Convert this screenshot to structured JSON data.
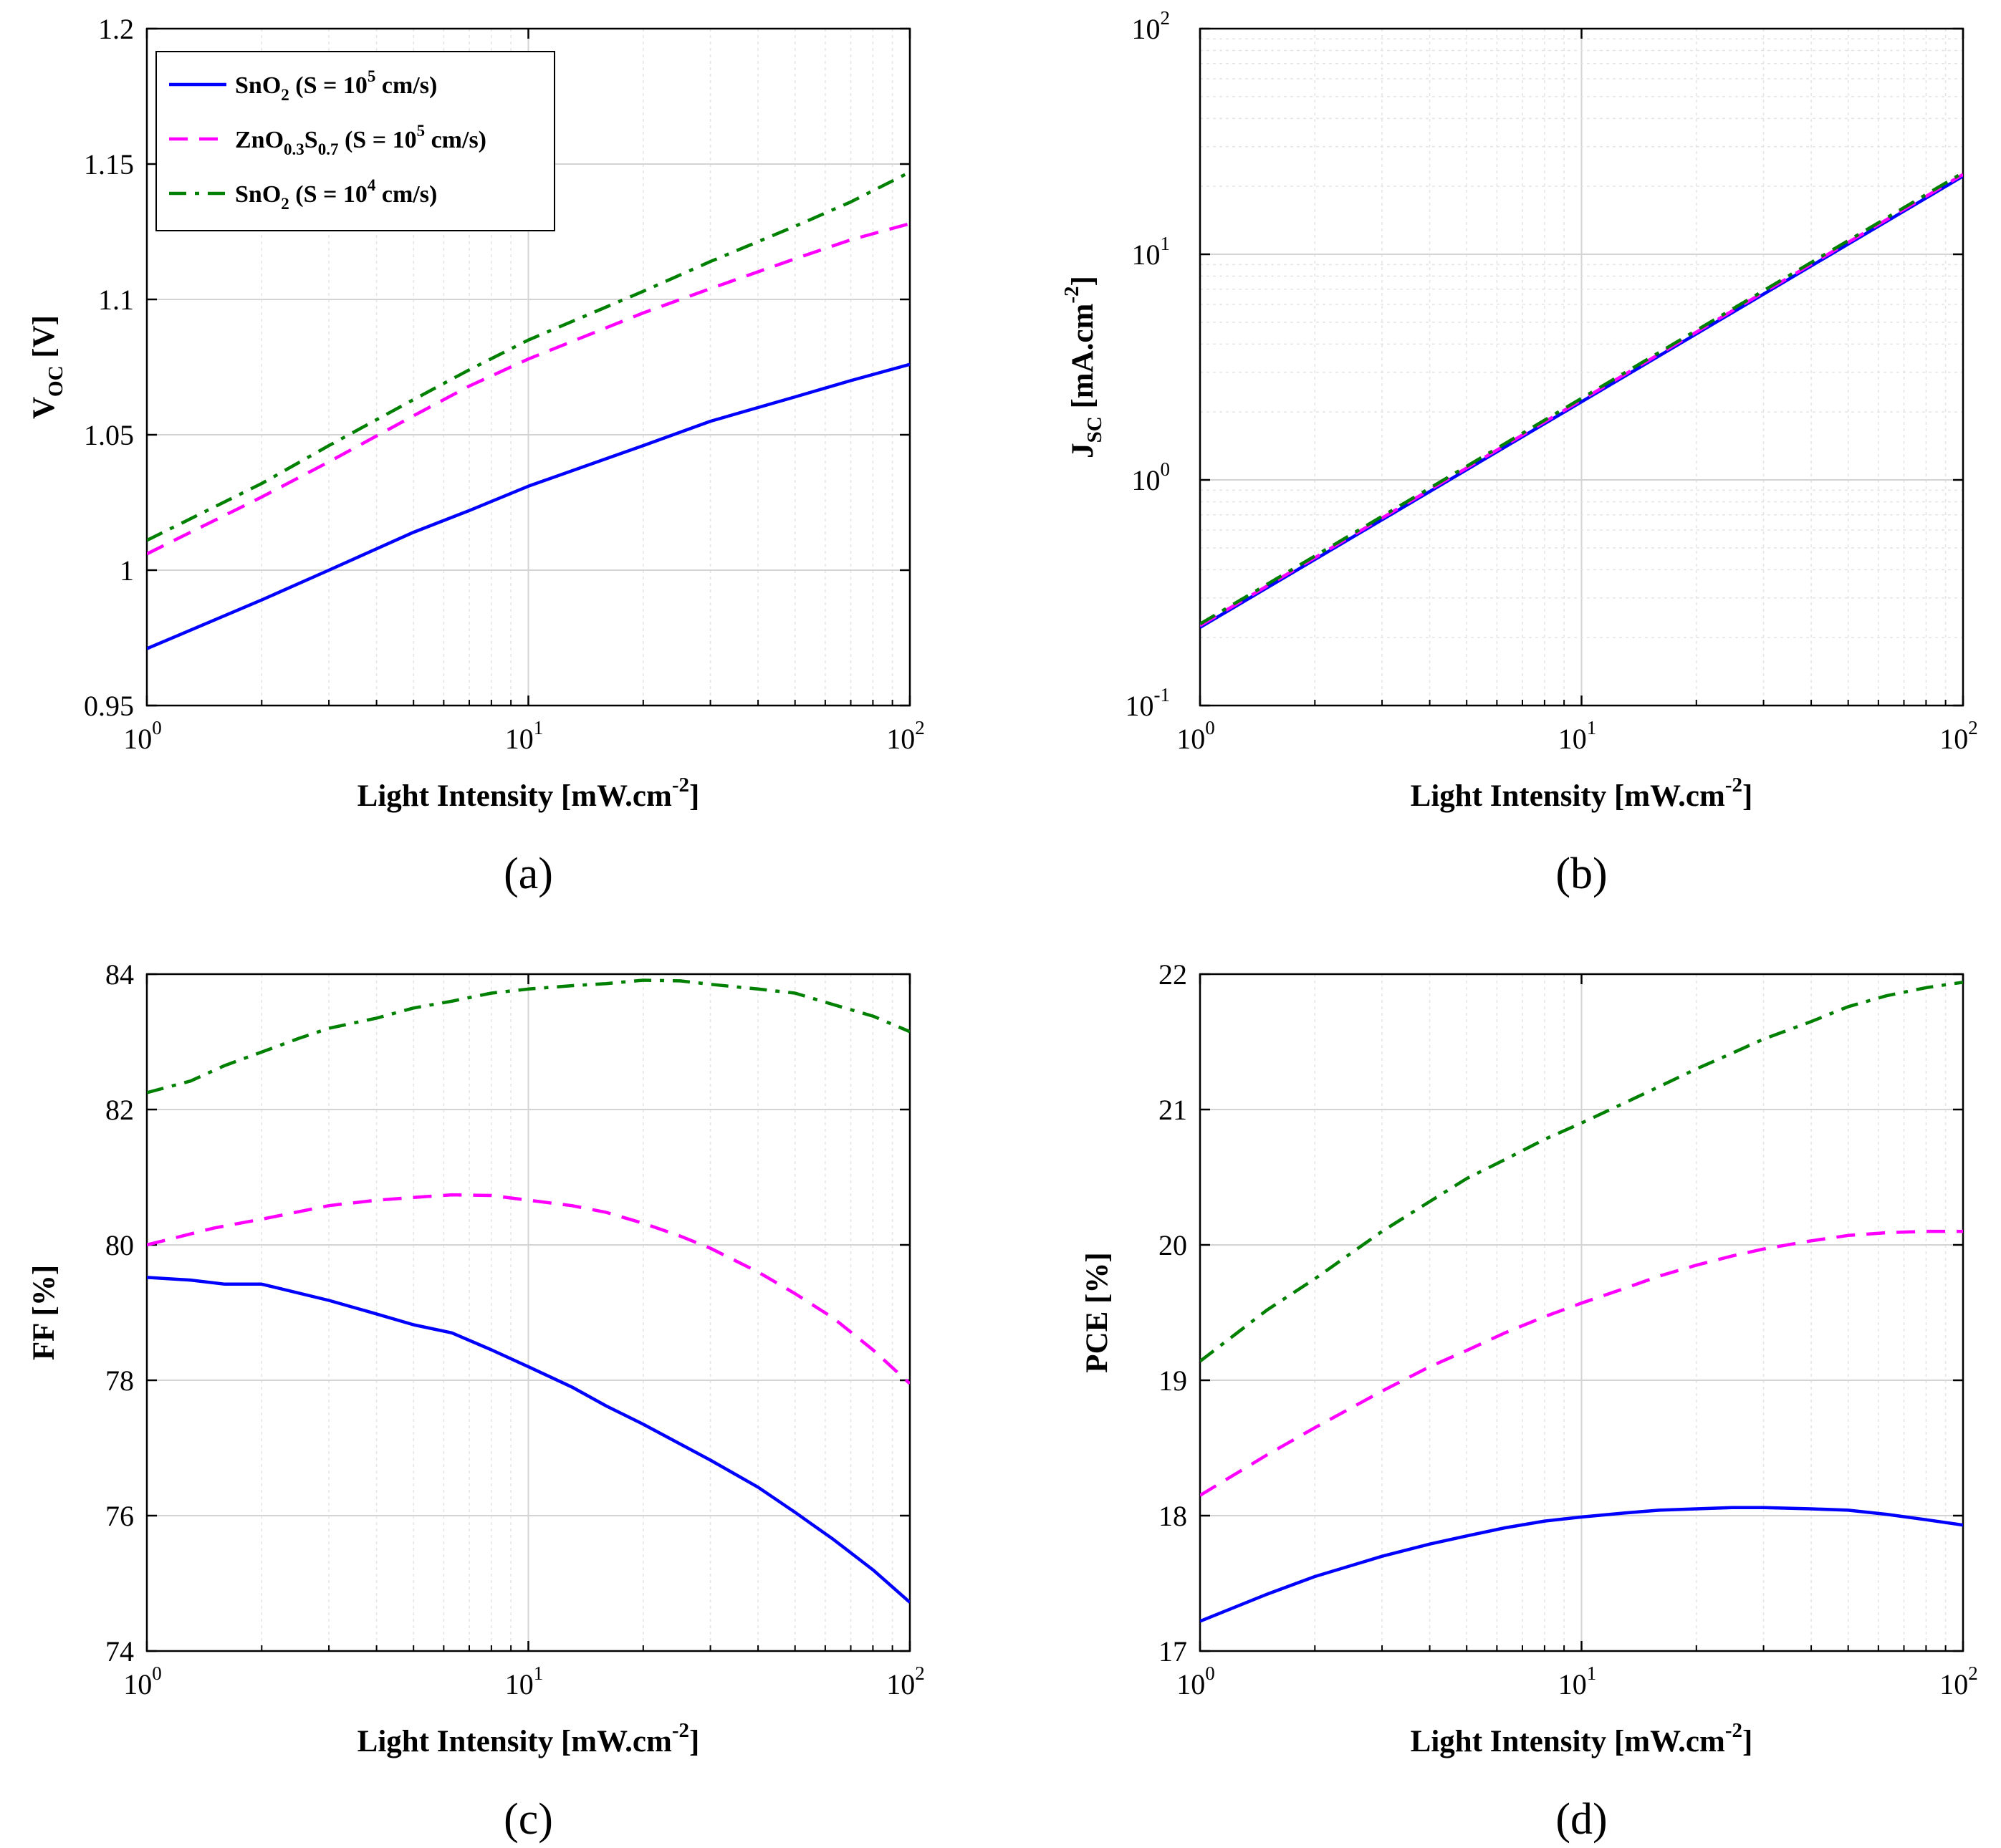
{
  "legend": {
    "entries": [
      {
        "base": "SnO",
        "sub1": "2",
        "mid": "",
        "sub2": "",
        "pre": " (S = 10",
        "exp": "5",
        "post": " cm/s)",
        "color": "#0000ff",
        "dash": "solid"
      },
      {
        "base": "ZnO",
        "sub1": "0.3",
        "mid": "S",
        "sub2": "0.7",
        "pre": " (S = 10",
        "exp": "5",
        "post": " cm/s)",
        "color": "#ff00ff",
        "dash": "dashed"
      },
      {
        "base": "SnO",
        "sub1": "2",
        "mid": "",
        "sub2": "",
        "pre": " (S = 10",
        "exp": "4",
        "post": " cm/s)",
        "color": "#008000",
        "dash": "dashdot"
      }
    ]
  },
  "chart_data": [
    {
      "id": "a",
      "panel_label": "(a)",
      "type": "line",
      "xscale": "log",
      "yscale": "linear",
      "xlim": [
        1,
        100
      ],
      "ylim": [
        0.95,
        1.2
      ],
      "xlabel": "Light Intensity [mW.cm",
      "xlabel_exp": "-2",
      "xlabel_end": "]",
      "ylabel": "V",
      "ylabel_sub": "OC",
      "ylabel_end": " [V]",
      "yticks": [
        "0.95",
        "1",
        "1.05",
        "1.1",
        "1.15",
        "1.2"
      ],
      "ytick_values": [
        0.95,
        1.0,
        1.05,
        1.1,
        1.15,
        1.2
      ],
      "xtick_exps": [
        "0",
        "1",
        "2"
      ],
      "legend_location": "top-left",
      "series": [
        {
          "name": "SnO2 (S = 10^5 cm/s)",
          "x": [
            1,
            2,
            3,
            5,
            7,
            10,
            20,
            30,
            50,
            70,
            100
          ],
          "values": [
            0.971,
            0.989,
            1.0,
            1.014,
            1.022,
            1.031,
            1.046,
            1.055,
            1.064,
            1.07,
            1.076
          ]
        },
        {
          "name": "ZnO0.3S0.7 (S = 10^5 cm/s)",
          "x": [
            1,
            2,
            3,
            5,
            7,
            10,
            20,
            30,
            50,
            70,
            100
          ],
          "values": [
            1.006,
            1.027,
            1.04,
            1.057,
            1.068,
            1.078,
            1.095,
            1.104,
            1.115,
            1.122,
            1.128
          ]
        },
        {
          "name": "SnO2 (S = 10^4 cm/s)",
          "x": [
            1,
            2,
            3,
            5,
            7,
            10,
            20,
            30,
            50,
            70,
            100
          ],
          "values": [
            1.011,
            1.032,
            1.046,
            1.063,
            1.074,
            1.085,
            1.103,
            1.114,
            1.127,
            1.136,
            1.147
          ]
        }
      ]
    },
    {
      "id": "b",
      "panel_label": "(b)",
      "type": "line",
      "xscale": "log",
      "yscale": "log",
      "xlim": [
        1,
        100
      ],
      "ylim": [
        0.1,
        100
      ],
      "xlabel": "Light Intensity [mW.cm",
      "xlabel_exp": "-2",
      "xlabel_end": "]",
      "ylabel": "J",
      "ylabel_sub": "SC",
      "ylabel_end": " [mA.cm",
      "ylabel_exp": "-2",
      "ylabel_close": "]",
      "ytick_exps": [
        "-1",
        "0",
        "1",
        "2"
      ],
      "xtick_exps": [
        "0",
        "1",
        "2"
      ],
      "series": [
        {
          "name": "SnO2 (S = 10^5 cm/s)",
          "x": [
            1,
            100
          ],
          "values": [
            0.222,
            22.2
          ]
        },
        {
          "name": "ZnO0.3S0.7 (S = 10^5 cm/s)",
          "x": [
            1,
            100
          ],
          "values": [
            0.226,
            22.6
          ]
        },
        {
          "name": "SnO2 (S = 10^4 cm/s)",
          "x": [
            1,
            100
          ],
          "values": [
            0.23,
            23.0
          ]
        }
      ]
    },
    {
      "id": "c",
      "panel_label": "(c)",
      "type": "line",
      "xscale": "log",
      "yscale": "linear",
      "xlim": [
        1,
        100
      ],
      "ylim": [
        74,
        84
      ],
      "xlabel": "Light Intensity [mW.cm",
      "xlabel_exp": "-2",
      "xlabel_end": "]",
      "ylabel": "FF [%]",
      "yticks": [
        "74",
        "76",
        "78",
        "80",
        "82",
        "84"
      ],
      "ytick_values": [
        74,
        76,
        78,
        80,
        82,
        84
      ],
      "xtick_exps": [
        "0",
        "1",
        "2"
      ],
      "series": [
        {
          "name": "SnO2 (S = 10^5 cm/s)",
          "x": [
            1,
            1.3,
            1.6,
            2,
            3,
            4,
            5,
            6.3,
            8,
            10,
            13,
            16,
            20,
            30,
            40,
            50,
            63,
            80,
            100
          ],
          "values": [
            79.52,
            79.48,
            79.42,
            79.42,
            79.18,
            78.98,
            78.82,
            78.7,
            78.45,
            78.2,
            77.9,
            77.62,
            77.35,
            76.82,
            76.42,
            76.05,
            75.65,
            75.2,
            74.72
          ]
        },
        {
          "name": "ZnO0.3S0.7 (S = 10^5 cm/s)",
          "x": [
            1,
            1.5,
            2,
            3,
            4,
            5,
            6.3,
            8,
            10,
            13,
            16,
            20,
            25,
            30,
            40,
            50,
            63,
            80,
            100
          ],
          "values": [
            80.0,
            80.25,
            80.38,
            80.58,
            80.66,
            80.7,
            80.74,
            80.73,
            80.66,
            80.58,
            80.48,
            80.32,
            80.13,
            79.95,
            79.6,
            79.28,
            78.92,
            78.45,
            77.95
          ]
        },
        {
          "name": "SnO2 (S = 10^4 cm/s)",
          "x": [
            1,
            1.3,
            1.6,
            2,
            2.5,
            3,
            4,
            5,
            6.3,
            8,
            10,
            13,
            16,
            20,
            25,
            30,
            40,
            50,
            63,
            80,
            100
          ],
          "values": [
            82.25,
            82.42,
            82.65,
            82.85,
            83.05,
            83.2,
            83.35,
            83.5,
            83.6,
            83.72,
            83.78,
            83.83,
            83.86,
            83.91,
            83.9,
            83.85,
            83.78,
            83.72,
            83.55,
            83.38,
            83.15
          ]
        }
      ]
    },
    {
      "id": "d",
      "panel_label": "(d)",
      "type": "line",
      "xscale": "log",
      "yscale": "linear",
      "xlim": [
        1,
        100
      ],
      "ylim": [
        17,
        22
      ],
      "xlabel": "Light Intensity [mW.cm",
      "xlabel_exp": "-2",
      "xlabel_end": "]",
      "ylabel": "PCE [%]",
      "yticks": [
        "17",
        "18",
        "19",
        "20",
        "21",
        "22"
      ],
      "ytick_values": [
        17,
        18,
        19,
        20,
        21,
        22
      ],
      "xtick_exps": [
        "0",
        "1",
        "2"
      ],
      "series": [
        {
          "name": "SnO2 (S = 10^5 cm/s)",
          "x": [
            1,
            1.5,
            2,
            3,
            4,
            5,
            6.3,
            8,
            10,
            13,
            16,
            20,
            25,
            30,
            40,
            50,
            63,
            80,
            100
          ],
          "values": [
            17.22,
            17.42,
            17.55,
            17.7,
            17.79,
            17.85,
            17.91,
            17.96,
            17.99,
            18.02,
            18.04,
            18.05,
            18.06,
            18.06,
            18.05,
            18.04,
            18.01,
            17.97,
            17.93
          ]
        },
        {
          "name": "ZnO0.3S0.7 (S = 10^5 cm/s)",
          "x": [
            1,
            1.5,
            2,
            3,
            4,
            5,
            6.3,
            8,
            10,
            13,
            16,
            20,
            25,
            30,
            40,
            50,
            63,
            80,
            100
          ],
          "values": [
            18.15,
            18.45,
            18.65,
            18.92,
            19.1,
            19.22,
            19.35,
            19.47,
            19.57,
            19.68,
            19.77,
            19.85,
            19.92,
            19.97,
            20.03,
            20.07,
            20.09,
            20.1,
            20.1
          ]
        },
        {
          "name": "SnO2 (S = 10^4 cm/s)",
          "x": [
            1,
            1.5,
            2,
            3,
            4,
            5,
            6.3,
            8,
            10,
            13,
            16,
            20,
            25,
            30,
            40,
            50,
            63,
            80,
            100
          ],
          "values": [
            19.14,
            19.52,
            19.75,
            20.1,
            20.32,
            20.49,
            20.63,
            20.78,
            20.9,
            21.05,
            21.17,
            21.3,
            21.42,
            21.52,
            21.65,
            21.76,
            21.84,
            21.9,
            21.94
          ]
        }
      ]
    }
  ]
}
